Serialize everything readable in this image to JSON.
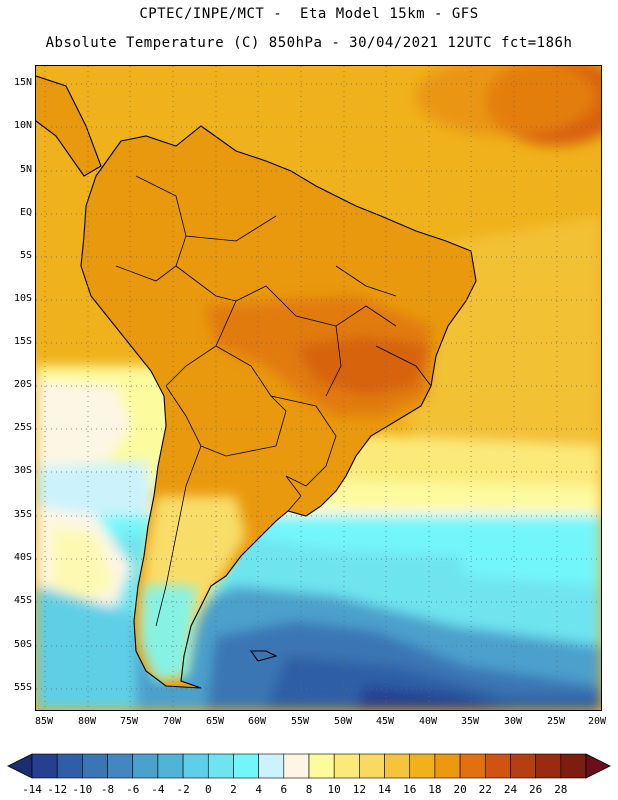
{
  "header": {
    "line1": "CPTEC/INPE/MCT -  Eta Model 15km - GFS",
    "line2": "Absolute Temperature (C) 850hPa - 30/04/2021 12UTC fct=186h"
  },
  "map": {
    "lat_labels": [
      "15N",
      "10N",
      "5N",
      "EQ",
      "5S",
      "10S",
      "15S",
      "20S",
      "25S",
      "30S",
      "35S",
      "40S",
      "45S",
      "50S",
      "55S"
    ],
    "lon_labels": [
      "85W",
      "80W",
      "75W",
      "70W",
      "65W",
      "60W",
      "55W",
      "50W",
      "45W",
      "40W",
      "35W",
      "30W",
      "25W",
      "20W"
    ],
    "ocean_color": "#f0b21c",
    "land_color": "#e9990d"
  },
  "colorbar": {
    "labels": [
      "-14",
      "-12",
      "-10",
      "-8",
      "-6",
      "-4",
      "-2",
      "0",
      "2",
      "4",
      "6",
      "8",
      "10",
      "12",
      "14",
      "16",
      "18",
      "20",
      "22",
      "24",
      "26",
      "28"
    ],
    "colors": [
      "#25408f",
      "#2f5ea6",
      "#3a76b4",
      "#4487c0",
      "#4ca0cc",
      "#50b4d6",
      "#5ecfe6",
      "#6ee4ef",
      "#73f6fa",
      "#ccf3fb",
      "#fef6e4",
      "#fcfb9e",
      "#fbe97a",
      "#f8da62",
      "#f3c43c",
      "#f1b11a",
      "#eb9a0d",
      "#e17110",
      "#cf5414",
      "#b63e13",
      "#9a2b10",
      "#7b1d10"
    ],
    "low_arrow_color": "#1b2e73",
    "high_arrow_color": "#6a0f1c"
  }
}
